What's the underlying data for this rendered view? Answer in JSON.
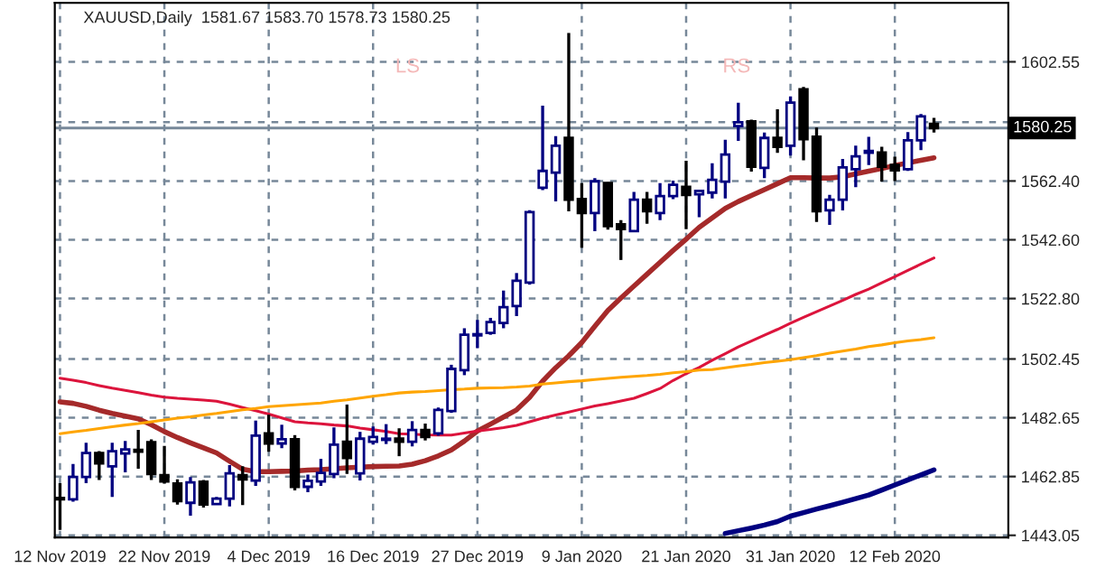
{
  "chart_data": {
    "type": "candlestick",
    "title": "XAUUSD,Daily  1581.67 1583.70 1578.73 1580.25",
    "annotations": [
      "LS",
      "RS"
    ],
    "categories": [
      "12 Nov 2019",
      null,
      null,
      null,
      null,
      null,
      null,
      null,
      "22 Nov 2019",
      null,
      null,
      null,
      null,
      null,
      null,
      null,
      "4 Dec 2019",
      null,
      null,
      null,
      null,
      null,
      null,
      null,
      "16 Dec 2019",
      null,
      null,
      null,
      null,
      null,
      null,
      null,
      "27 Dec 2019",
      null,
      null,
      null,
      null,
      null,
      null,
      null,
      "9 Jan 2020",
      null,
      null,
      null,
      null,
      null,
      null,
      null,
      "21 Jan 2020",
      null,
      null,
      null,
      null,
      null,
      null,
      null,
      "31 Jan 2020",
      null,
      null,
      null,
      null,
      null,
      null,
      null,
      "12 Feb 2020",
      null,
      null,
      null
    ],
    "ohlc": [
      [
        1455.6,
        1460.6,
        1444.9,
        1455.2
      ],
      [
        1455.2,
        1467.1,
        1454.4,
        1462.7
      ],
      [
        1462.7,
        1474.2,
        1460.6,
        1470.8
      ],
      [
        1470.8,
        1471.4,
        1461.7,
        1467.3
      ],
      [
        1466.3,
        1474.2,
        1456.0,
        1471.4
      ],
      [
        1470.6,
        1474.8,
        1464.3,
        1472.0
      ],
      [
        1471.8,
        1478.6,
        1465.5,
        1471.2
      ],
      [
        1474.4,
        1475.4,
        1461.7,
        1463.7
      ],
      [
        1463.3,
        1473.2,
        1460.5,
        1461.2
      ],
      [
        1460.5,
        1461.9,
        1453.4,
        1454.6
      ],
      [
        1454.0,
        1462.7,
        1449.7,
        1460.9
      ],
      [
        1461.1,
        1461.7,
        1452.4,
        1453.4
      ],
      [
        1453.6,
        1456.0,
        1453.6,
        1455.4
      ],
      [
        1455.4,
        1466.7,
        1452.8,
        1463.9
      ],
      [
        1463.3,
        1466.3,
        1453.2,
        1461.9
      ],
      [
        1461.5,
        1481.7,
        1459.7,
        1476.6
      ],
      [
        1477.4,
        1483.7,
        1471.2,
        1474.0
      ],
      [
        1474.0,
        1480.3,
        1472.4,
        1475.4
      ],
      [
        1475.4,
        1476.8,
        1458.2,
        1459.4
      ],
      [
        1459.4,
        1463.5,
        1457.6,
        1461.4
      ],
      [
        1461.2,
        1468.8,
        1459.7,
        1464.1
      ],
      [
        1463.7,
        1479.4,
        1462.3,
        1473.6
      ],
      [
        1474.6,
        1487.1,
        1463.7,
        1469.1
      ],
      [
        1463.9,
        1477.9,
        1461.5,
        1475.6
      ],
      [
        1474.6,
        1479.7,
        1473.6,
        1476.2
      ],
      [
        1475.2,
        1480.5,
        1473.8,
        1475.6
      ],
      [
        1475.6,
        1479.1,
        1469.7,
        1474.6
      ],
      [
        1474.6,
        1481.5,
        1473.0,
        1478.5
      ],
      [
        1478.5,
        1480.7,
        1475.0,
        1476.2
      ],
      [
        1477.4,
        1486.1,
        1476.6,
        1485.3
      ],
      [
        1484.9,
        1500.5,
        1484.3,
        1499.1
      ],
      [
        1498.7,
        1512.8,
        1497.0,
        1510.6
      ],
      [
        1510.4,
        1515.6,
        1506.1,
        1510.8
      ],
      [
        1511.2,
        1516.3,
        1510.6,
        1514.9
      ],
      [
        1514.6,
        1525.5,
        1512.8,
        1519.9
      ],
      [
        1520.3,
        1531.4,
        1516.9,
        1528.8
      ],
      [
        1528.2,
        1552.6,
        1527.5,
        1551.9
      ],
      [
        1560.1,
        1587.8,
        1559.3,
        1565.8
      ],
      [
        1565.2,
        1577.5,
        1555.5,
        1574.3
      ],
      [
        1576.9,
        1612.3,
        1552.2,
        1556.1
      ],
      [
        1556.3,
        1561.7,
        1539.9,
        1551.6
      ],
      [
        1551.6,
        1563.4,
        1545.5,
        1562.3
      ],
      [
        1561.7,
        1562.0,
        1546.0,
        1547.2
      ],
      [
        1547.8,
        1549.2,
        1535.8,
        1546.2
      ],
      [
        1545.5,
        1558.7,
        1545.5,
        1556.1
      ],
      [
        1556.1,
        1558.7,
        1548.0,
        1552.2
      ],
      [
        1551.6,
        1561.7,
        1549.2,
        1557.3
      ],
      [
        1557.3,
        1562.5,
        1556.3,
        1561.1
      ],
      [
        1560.4,
        1569.2,
        1546.2,
        1557.7
      ],
      [
        1557.9,
        1559.1,
        1550.2,
        1559.1
      ],
      [
        1558.5,
        1568.4,
        1556.5,
        1562.8
      ],
      [
        1562.2,
        1576.3,
        1556.5,
        1571.3
      ],
      [
        1580.9,
        1588.8,
        1575.9,
        1582.2
      ],
      [
        1582.5,
        1583.1,
        1565.6,
        1567.2
      ],
      [
        1566.8,
        1578.7,
        1563.4,
        1576.9
      ],
      [
        1576.9,
        1586.6,
        1571.9,
        1573.9
      ],
      [
        1574.3,
        1590.9,
        1571.0,
        1588.8
      ],
      [
        1593.3,
        1594.1,
        1569.4,
        1576.5
      ],
      [
        1577.3,
        1580.4,
        1548.6,
        1552.2
      ],
      [
        1552.5,
        1557.7,
        1547.6,
        1556.1
      ],
      [
        1556.1,
        1569.8,
        1552.5,
        1567.0
      ],
      [
        1566.4,
        1574.3,
        1560.3,
        1570.7
      ],
      [
        1571.9,
        1577.3,
        1567.8,
        1572.5
      ],
      [
        1572.0,
        1573.9,
        1562.2,
        1567.2
      ],
      [
        1567.8,
        1570.6,
        1562.4,
        1566.0
      ],
      [
        1566.4,
        1578.9,
        1565.8,
        1576.1
      ],
      [
        1576.1,
        1585.0,
        1572.8,
        1584.2
      ],
      [
        1581.67,
        1583.7,
        1578.73,
        1580.25
      ]
    ],
    "series": [
      {
        "type": "line",
        "color": "#a52a2a",
        "values": [
          1488.0,
          1487.5,
          1486.5,
          1485.2,
          1484.1,
          1483.2,
          1482.3,
          1480.3,
          1478.0,
          1476.0,
          1474.2,
          1472.5,
          1470.8,
          1468.0,
          1465.3,
          1464.5,
          1464.5,
          1464.6,
          1464.7,
          1465.0,
          1465.2,
          1465.5,
          1465.8,
          1466.0,
          1466.2,
          1466.3,
          1466.4,
          1467.0,
          1468.2,
          1469.8,
          1471.8,
          1474.8,
          1478.2,
          1480.5,
          1482.9,
          1485.3,
          1489.5,
          1495.0,
          1499.5,
          1503.5,
          1508.0,
          1513.5,
          1518.8,
          1523.0,
          1527.0,
          1531.0,
          1535.0,
          1539.0,
          1542.8,
          1546.8,
          1550.0,
          1553.2,
          1555.5,
          1557.5,
          1559.5,
          1561.5,
          1563.5,
          1563.5,
          1563.4,
          1563.4,
          1563.8,
          1564.8,
          1565.7,
          1566.6,
          1567.6,
          1568.5,
          1569.4,
          1570.2
        ]
      },
      {
        "type": "line",
        "color": "#dc143c",
        "values": [
          1496.0,
          1495.3,
          1494.5,
          1493.5,
          1492.6,
          1491.9,
          1491.1,
          1490.3,
          1489.6,
          1489.2,
          1488.9,
          1488.6,
          1488.2,
          1487.2,
          1486.1,
          1485.0,
          1483.9,
          1482.6,
          1481.3,
          1480.9,
          1480.6,
          1480.2,
          1479.9,
          1479.2,
          1478.6,
          1478.0,
          1477.3,
          1477.1,
          1476.9,
          1476.8,
          1476.8,
          1477.5,
          1478.2,
          1478.7,
          1479.3,
          1480.1,
          1481.3,
          1482.5,
          1483.6,
          1484.6,
          1485.6,
          1486.6,
          1487.4,
          1488.3,
          1489.2,
          1490.8,
          1492.5,
          1495.2,
          1497.5,
          1499.6,
          1502.0,
          1504.2,
          1506.5,
          1508.5,
          1510.5,
          1512.4,
          1514.5,
          1516.5,
          1518.4,
          1520.3,
          1522.2,
          1524.2,
          1526.0,
          1528.1,
          1530.2,
          1532.3,
          1534.4,
          1536.5
        ]
      },
      {
        "type": "line",
        "color": "#ffa500",
        "values": [
          1477.3,
          1477.9,
          1478.4,
          1479.0,
          1479.6,
          1480.2,
          1480.7,
          1481.3,
          1481.9,
          1482.5,
          1483.0,
          1483.6,
          1484.1,
          1484.7,
          1485.3,
          1485.8,
          1486.4,
          1486.7,
          1487.0,
          1487.3,
          1487.6,
          1488.2,
          1488.7,
          1489.3,
          1489.9,
          1490.4,
          1491.0,
          1491.3,
          1491.5,
          1491.8,
          1492.1,
          1492.3,
          1492.6,
          1492.7,
          1492.8,
          1493.0,
          1493.3,
          1494.0,
          1494.4,
          1494.8,
          1495.1,
          1495.5,
          1495.9,
          1496.3,
          1496.6,
          1496.9,
          1497.3,
          1497.8,
          1498.2,
          1498.7,
          1498.9,
          1499.5,
          1500.1,
          1500.6,
          1501.2,
          1501.7,
          1502.2,
          1502.9,
          1503.6,
          1504.4,
          1505.1,
          1505.8,
          1506.6,
          1507.2,
          1507.9,
          1508.5,
          1509.0,
          1509.6
        ]
      },
      {
        "type": "line",
        "color": "#000080",
        "values": [
          null,
          null,
          null,
          null,
          null,
          null,
          null,
          null,
          null,
          null,
          null,
          null,
          null,
          null,
          null,
          null,
          null,
          null,
          null,
          null,
          null,
          null,
          null,
          null,
          null,
          null,
          null,
          null,
          null,
          null,
          null,
          null,
          null,
          null,
          null,
          null,
          null,
          null,
          null,
          null,
          null,
          null,
          null,
          null,
          null,
          null,
          null,
          null,
          null,
          null,
          null,
          1443.7,
          1444.6,
          1445.5,
          1446.5,
          1447.7,
          1449.5,
          1450.7,
          1451.9,
          1453.0,
          1454.2,
          1455.4,
          1456.6,
          1458.3,
          1460.0,
          1461.7,
          1463.4,
          1465.1
        ]
      }
    ],
    "ylim": [
      1442.3,
      1622.4
    ],
    "yticks": [
      1443.05,
      1462.85,
      1482.65,
      1502.45,
      {
        "value": 1522.8,
        "label": "1522.80"
      },
      {
        "value": 1542.6,
        "label": "1542.60"
      },
      {
        "value": 1562.4,
        "label": "1562.40"
      },
      {
        "value": 1582.2,
        "label": null
      },
      1602.55
    ],
    "ref_lines": [
      {
        "axis": "y",
        "value": 1580.25,
        "label": "1580.25",
        "color": "#778899"
      }
    ],
    "grid": true,
    "legend": false
  }
}
